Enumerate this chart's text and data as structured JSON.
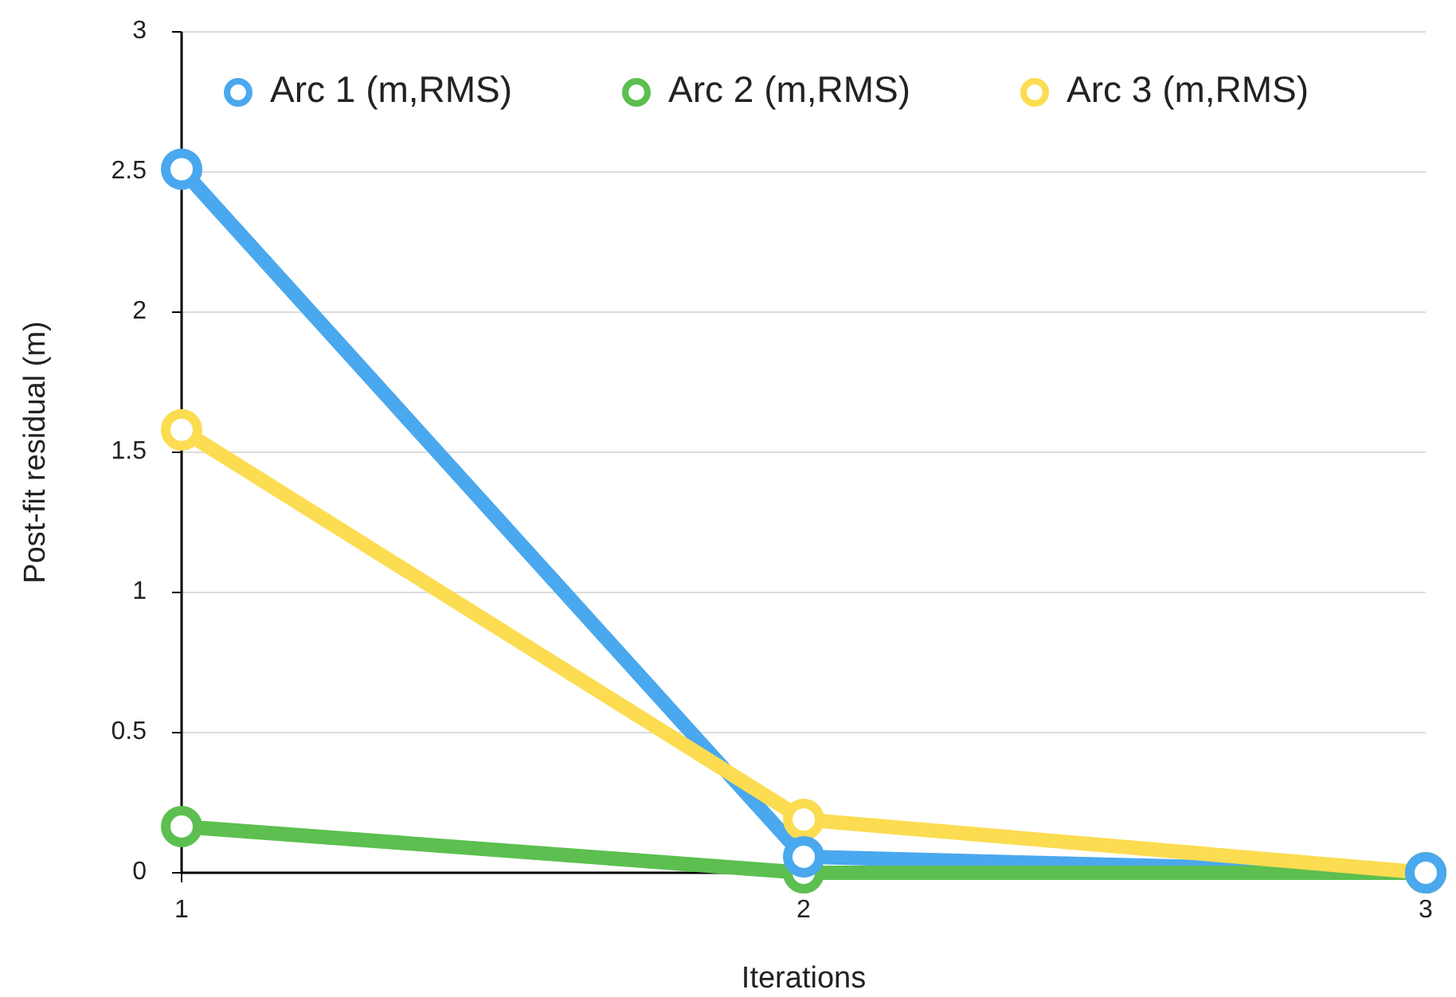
{
  "chart_data": {
    "type": "line",
    "xlabel": "Iterations",
    "ylabel": "Post-fit residual (m)",
    "x": [
      1,
      2,
      3
    ],
    "xlim": [
      1,
      3
    ],
    "xticks": [
      1,
      2,
      3
    ],
    "ylim": [
      0,
      3
    ],
    "yticks": [
      0,
      0.5,
      1,
      1.5,
      2,
      2.5,
      3
    ],
    "grid": "y",
    "legend": "top",
    "marker": "circle",
    "line_style": "solid",
    "series": [
      {
        "name": "Arc 1 (m,RMS)",
        "color": "#4aa8ee",
        "values": [
          2.51,
          0.057,
          0
        ]
      },
      {
        "name": "Arc 2 (m,RMS)",
        "color": "#5cbf4f",
        "values": [
          0.165,
          0,
          0
        ]
      },
      {
        "name": "Arc 3 (m,RMS)",
        "color": "#fcdc50",
        "values": [
          1.58,
          0.19,
          0
        ]
      }
    ]
  }
}
